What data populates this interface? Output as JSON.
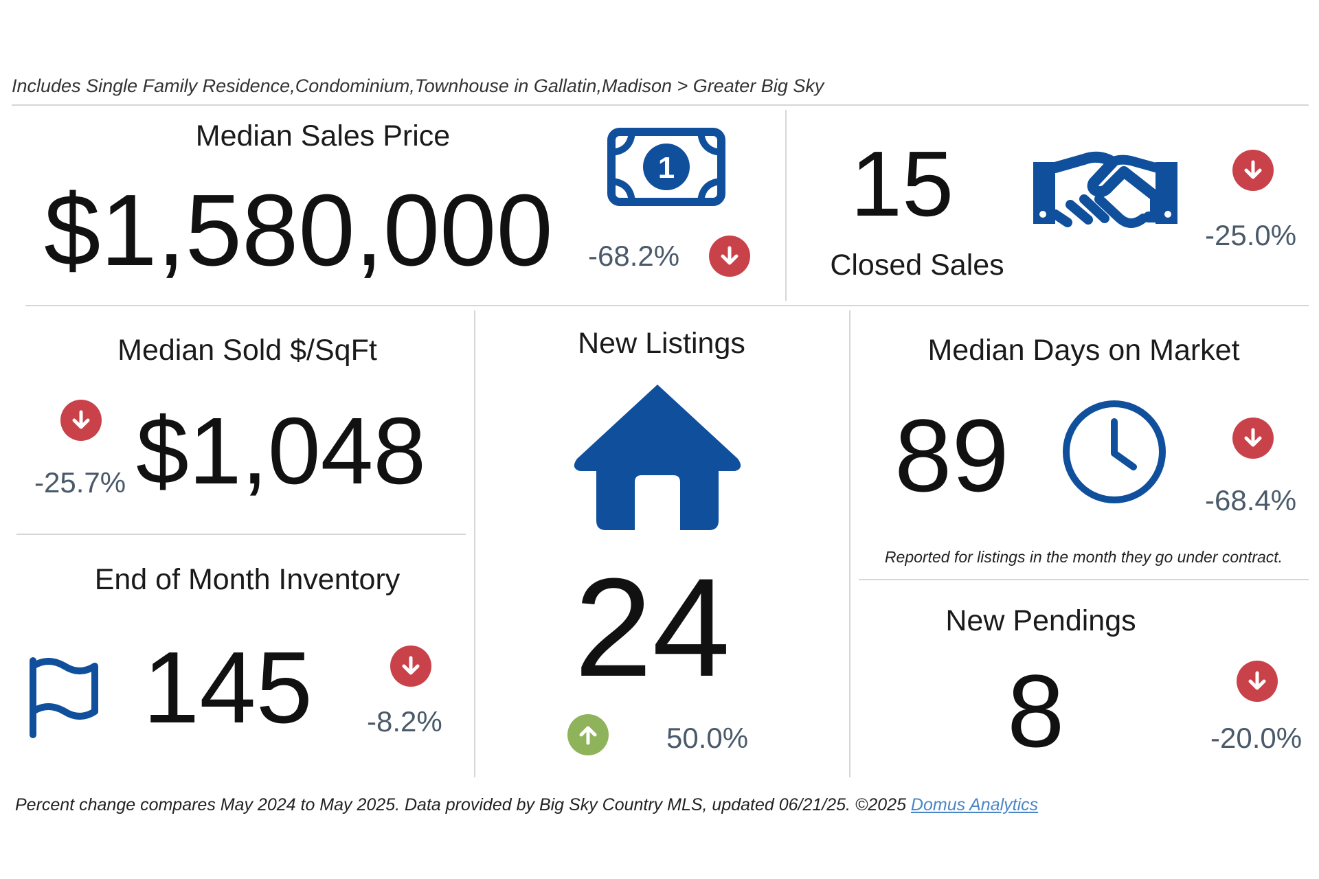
{
  "subtitle": "Includes Single Family Residence,Condominium,Townhouse in Gallatin,Madison > Greater Big Sky",
  "colors": {
    "icon_blue": "#0f4f9c",
    "down_red": "#c9424a",
    "up_green": "#8fb35a",
    "pct_gray": "#4a5a6a"
  },
  "median_sales_price": {
    "title": "Median Sales Price",
    "value": "$1,580,000",
    "change": "-68.2%",
    "direction": "down",
    "icon": "dollar-bill-icon"
  },
  "closed_sales": {
    "title": "Closed Sales",
    "value": "15",
    "change": "-25.0%",
    "direction": "down",
    "icon": "handshake-icon"
  },
  "median_sold_sqft": {
    "title": "Median Sold $/SqFt",
    "value": "$1,048",
    "change": "-25.7%",
    "direction": "down"
  },
  "new_listings": {
    "title": "New Listings",
    "value": "24",
    "change": "50.0%",
    "direction": "up",
    "icon": "house-icon"
  },
  "median_days_on_market": {
    "title": "Median Days on Market",
    "value": "89",
    "change": "-68.4%",
    "direction": "down",
    "icon": "clock-icon",
    "note": "Reported for listings in the month they go under contract."
  },
  "end_of_month_inventory": {
    "title": "End of Month Inventory",
    "value": "145",
    "change": "-8.2%",
    "direction": "down",
    "icon": "flag-icon"
  },
  "new_pendings": {
    "title": "New Pendings",
    "value": "8",
    "change": "-20.0%",
    "direction": "down"
  },
  "footer": {
    "text": "Percent change compares May 2024 to May 2025.  Data provided by Big Sky Country MLS, updated 06/21/25. ©2025 ",
    "link_text": "Domus Analytics"
  }
}
